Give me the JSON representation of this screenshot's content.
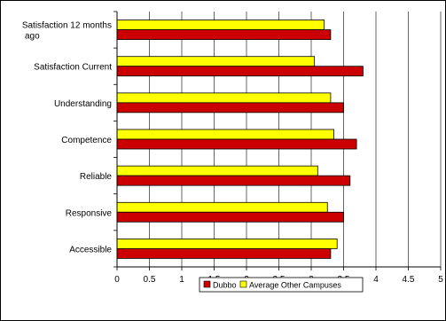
{
  "chart_data": {
    "type": "bar",
    "orientation": "horizontal",
    "categories": [
      [
        "Satisfaction 12 months",
        "ago"
      ],
      [
        "Satisfaction Current"
      ],
      [
        "Understanding"
      ],
      [
        "Competence"
      ],
      [
        "Reliable"
      ],
      [
        "Responsive"
      ],
      [
        "Accessible"
      ]
    ],
    "series": [
      {
        "name": "Dubbo",
        "color": "#cc0000",
        "values": [
          3.3,
          3.8,
          3.5,
          3.7,
          3.6,
          3.5,
          3.3
        ]
      },
      {
        "name": "Average Other Campuses",
        "color": "#ffff00",
        "values": [
          3.2,
          3.05,
          3.3,
          3.35,
          3.1,
          3.25,
          3.4
        ]
      }
    ],
    "xlim": [
      0,
      5
    ],
    "x_ticks": [
      "0",
      "0.5",
      "1",
      "1.5",
      "2",
      "2.5",
      "3",
      "3.5",
      "4",
      "4.5",
      "5"
    ],
    "grid": "vertical",
    "legend": "bottom"
  }
}
